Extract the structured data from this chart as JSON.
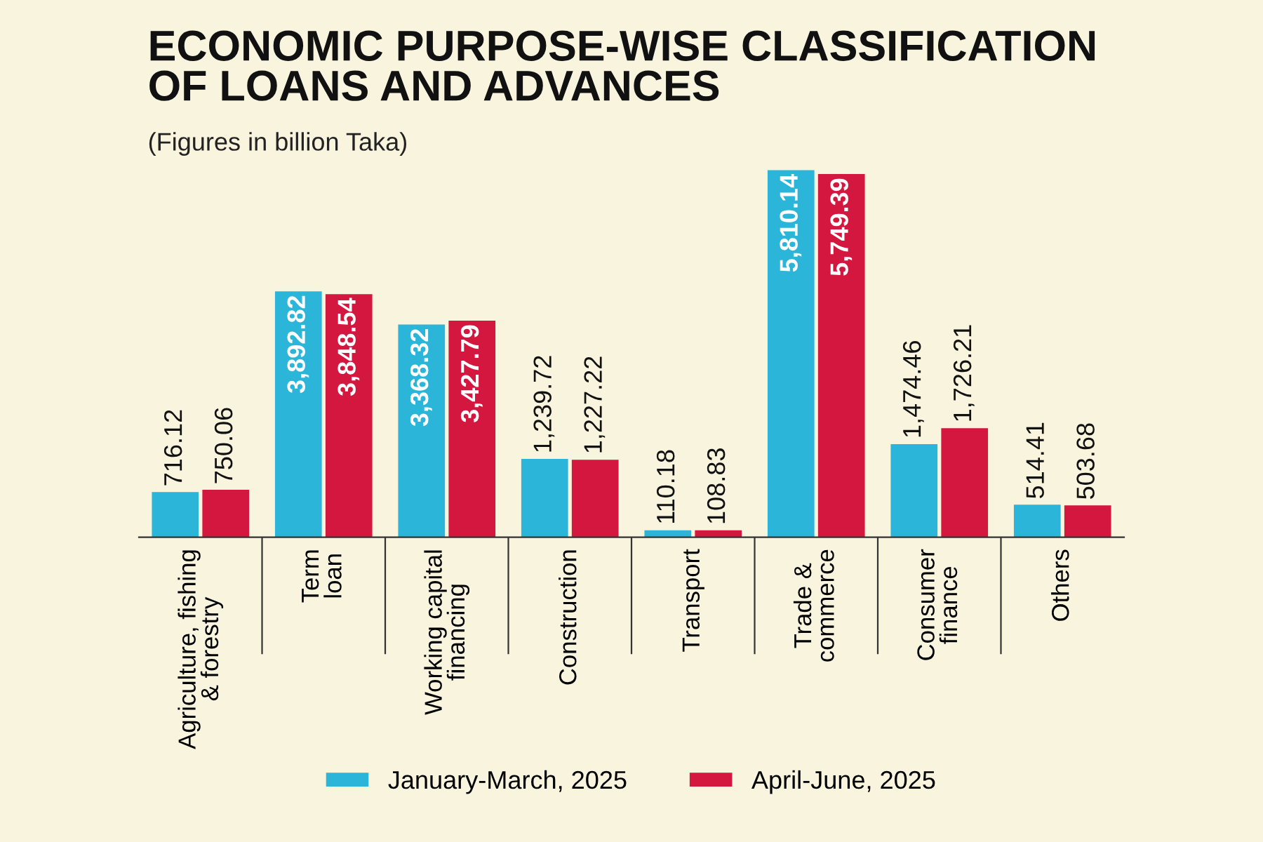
{
  "chart_data": {
    "type": "bar",
    "title": "ECONOMIC PURPOSE-WISE CLASSIFICATION\nOF LOANS AND ADVANCES",
    "subtitle": "(Figures in billion Taka)",
    "categories": [
      "Agriculture, fishing\n& forestry",
      "Term\nloan",
      "Working capital\nfinancing",
      "Construction",
      "Transport",
      "Trade &\ncommerce",
      "Consumer\nfinance",
      "Others"
    ],
    "series": [
      {
        "name": "January-March, 2025",
        "color": "#2bb6d9",
        "values": [
          716.12,
          3892.82,
          3368.32,
          1239.72,
          110.18,
          5810.14,
          1474.46,
          514.41
        ],
        "value_labels": [
          "716.12",
          "3,892.82",
          "3,368.32",
          "1,239.72",
          "110.18",
          "5,810.14",
          "1,474.46",
          "514.41"
        ]
      },
      {
        "name": "April-June, 2025",
        "color": "#d3173f",
        "values": [
          750.06,
          3848.54,
          3427.79,
          1227.22,
          108.83,
          5749.39,
          1726.21,
          503.68
        ],
        "value_labels": [
          "750.06",
          "3,848.54",
          "3,427.79",
          "1,227.22",
          "108.83",
          "5,749.39",
          "1,726.21",
          "503.68"
        ]
      }
    ],
    "legend": "bottom"
  }
}
